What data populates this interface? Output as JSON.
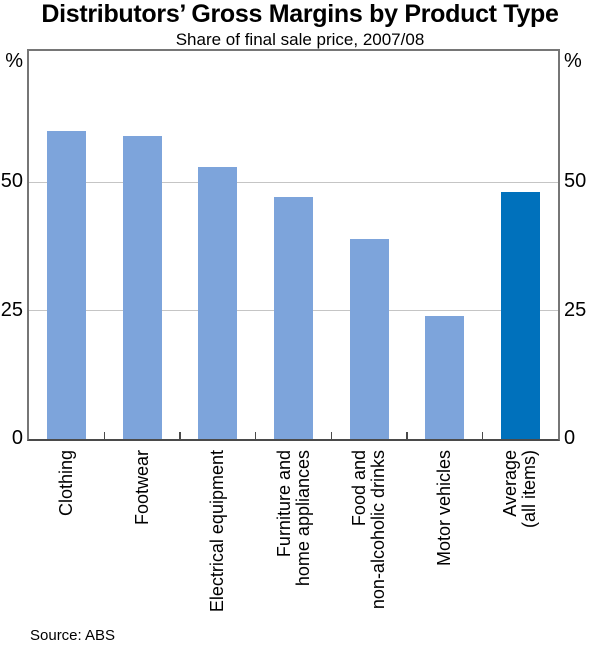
{
  "title": "Distributors’ Gross Margins by Product Type",
  "subtitle": "Share of final sale price, 2007/08",
  "source": "Source: ABS",
  "axis": {
    "unit_left": "%",
    "unit_right": "%"
  },
  "chart_data": {
    "type": "bar",
    "title": "Distributors’ Gross Margins by Product Type",
    "subtitle": "Share of final sale price, 2007/08",
    "categories": [
      "Clothing",
      "Footwear",
      "Electrical equipment",
      "Furniture and\nhome appliances",
      "Food and\nnon-alcoholic drinks",
      "Motor vehicles",
      "Average\n(all items)"
    ],
    "values": [
      60,
      59,
      53,
      47,
      39,
      24,
      48
    ],
    "unit": "%",
    "yticks": [
      0,
      25,
      50
    ],
    "ylim": [
      0,
      75.5
    ],
    "grid": true,
    "legend": false,
    "highlight_index": 6,
    "colors": {
      "bar_default": "#7DA4DB",
      "bar_highlight": "#0071BC",
      "gridline": "#c5c5c5",
      "frame": "#767676",
      "baseline": "#4a4a4a"
    },
    "source": "Source: ABS"
  }
}
